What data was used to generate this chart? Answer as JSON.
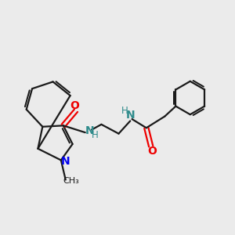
{
  "bg_color": "#ebebeb",
  "bond_color": "#1a1a1a",
  "N_color": "#0000ee",
  "O_color": "#ee0000",
  "NH_color": "#2e8b8b",
  "line_width": 1.6,
  "font_size": 8.5,
  "xlim": [
    0,
    10
  ],
  "ylim": [
    0,
    10
  ]
}
